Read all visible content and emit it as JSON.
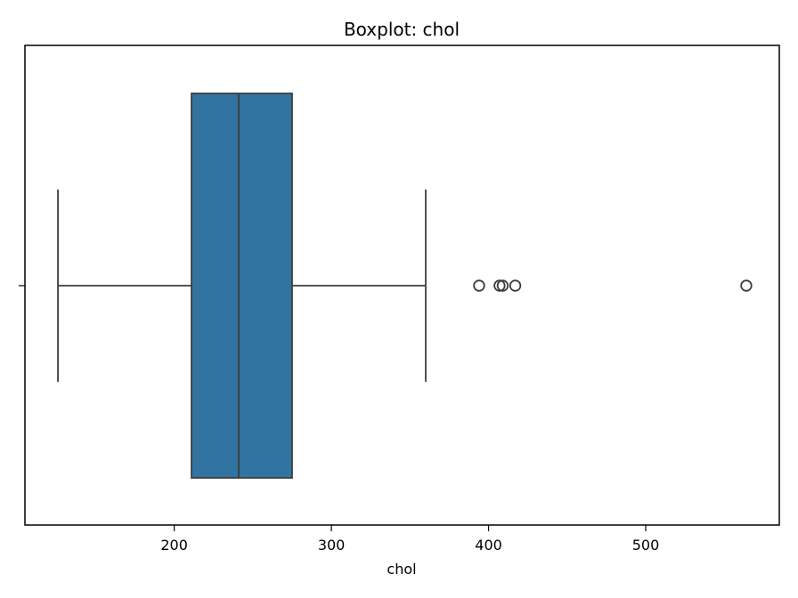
{
  "chart_data": {
    "type": "boxplot",
    "title": "Boxplot: chol",
    "xlabel": "chol",
    "ylabel": "",
    "orientation": "horizontal",
    "xlim": [
      105,
      585
    ],
    "xticks": [
      200,
      300,
      400,
      500
    ],
    "xtick_labels": [
      "200",
      "300",
      "400",
      "500"
    ],
    "grid": false,
    "legend": "none",
    "box": {
      "whisker_low": 126,
      "q1": 211,
      "median": 241,
      "q3": 275,
      "whisker_high": 360,
      "outliers": [
        394,
        407,
        409,
        417,
        564
      ]
    },
    "colors": {
      "box_fill": "#3274a1",
      "line": "#3d3d3d",
      "axes": "#000000",
      "background": "#ffffff"
    }
  }
}
